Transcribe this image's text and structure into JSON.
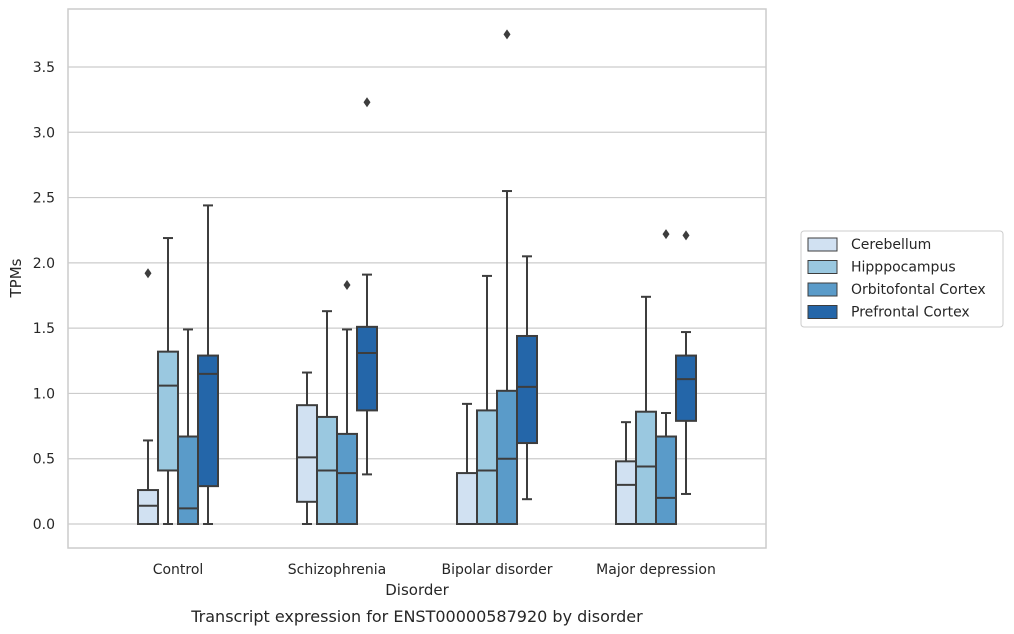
{
  "chart_data": {
    "type": "box",
    "title": "",
    "caption": "Transcript expression for ENST00000587920 by disorder",
    "xlabel": "Disorder",
    "ylabel": "TPMs",
    "ylim": [
      -0.18,
      3.9
    ],
    "yticks": [
      0.0,
      0.5,
      1.0,
      1.5,
      2.0,
      2.5,
      3.0,
      3.5
    ],
    "ytick_labels": [
      "0.0",
      "0.5",
      "1.0",
      "1.5",
      "2.0",
      "2.5",
      "3.0",
      "3.5"
    ],
    "grid": "horizontal",
    "legend_position": "right",
    "categories": [
      "Control",
      "Schizophrenia",
      "Bipolar disorder",
      "Major depression"
    ],
    "series": [
      {
        "name": "Cerebellum",
        "color": "#d1e1f2",
        "boxes": [
          {
            "whislo": 0.0,
            "q1": 0.0,
            "med": 0.14,
            "q3": 0.26,
            "whishi": 0.64,
            "fliers": [
              1.92
            ]
          },
          {
            "whislo": 0.0,
            "q1": 0.17,
            "med": 0.51,
            "q3": 0.91,
            "whishi": 1.16,
            "fliers": []
          },
          {
            "whislo": 0.0,
            "q1": 0.0,
            "med": 0.0,
            "q3": 0.39,
            "whishi": 0.92,
            "fliers": []
          },
          {
            "whislo": 0.0,
            "q1": 0.0,
            "med": 0.3,
            "q3": 0.48,
            "whishi": 0.78,
            "fliers": []
          }
        ]
      },
      {
        "name": "Hipppocampus",
        "color": "#9ac8e0",
        "boxes": [
          {
            "whislo": 0.0,
            "q1": 0.41,
            "med": 1.06,
            "q3": 1.32,
            "whishi": 2.19,
            "fliers": []
          },
          {
            "whislo": 0.0,
            "q1": 0.0,
            "med": 0.41,
            "q3": 0.82,
            "whishi": 1.63,
            "fliers": []
          },
          {
            "whislo": 0.0,
            "q1": 0.0,
            "med": 0.41,
            "q3": 0.87,
            "whishi": 1.9,
            "fliers": []
          },
          {
            "whislo": 0.0,
            "q1": 0.0,
            "med": 0.44,
            "q3": 0.86,
            "whishi": 1.74,
            "fliers": []
          }
        ]
      },
      {
        "name": "Orbitofontal Cortex",
        "color": "#5a9bc9",
        "boxes": [
          {
            "whislo": 0.0,
            "q1": 0.0,
            "med": 0.12,
            "q3": 0.67,
            "whishi": 1.49,
            "fliers": []
          },
          {
            "whislo": 0.0,
            "q1": 0.0,
            "med": 0.39,
            "q3": 0.69,
            "whishi": 1.49,
            "fliers": [
              1.83
            ]
          },
          {
            "whislo": 0.0,
            "q1": 0.0,
            "med": 0.5,
            "q3": 1.02,
            "whishi": 2.55,
            "fliers": [
              3.75
            ]
          },
          {
            "whislo": 0.0,
            "q1": 0.0,
            "med": 0.2,
            "q3": 0.67,
            "whishi": 0.85,
            "fliers": [
              2.22
            ]
          }
        ]
      },
      {
        "name": "Prefrontal Cortex",
        "color": "#2466a9",
        "boxes": [
          {
            "whislo": 0.0,
            "q1": 0.29,
            "med": 1.15,
            "q3": 1.29,
            "whishi": 2.44,
            "fliers": []
          },
          {
            "whislo": 0.38,
            "q1": 0.87,
            "med": 1.31,
            "q3": 1.51,
            "whishi": 1.91,
            "fliers": [
              3.23
            ]
          },
          {
            "whislo": 0.19,
            "q1": 0.62,
            "med": 1.05,
            "q3": 1.44,
            "whishi": 2.05,
            "fliers": []
          },
          {
            "whislo": 0.23,
            "q1": 0.79,
            "med": 1.11,
            "q3": 1.29,
            "whishi": 1.47,
            "fliers": [
              2.21
            ]
          }
        ]
      }
    ]
  }
}
